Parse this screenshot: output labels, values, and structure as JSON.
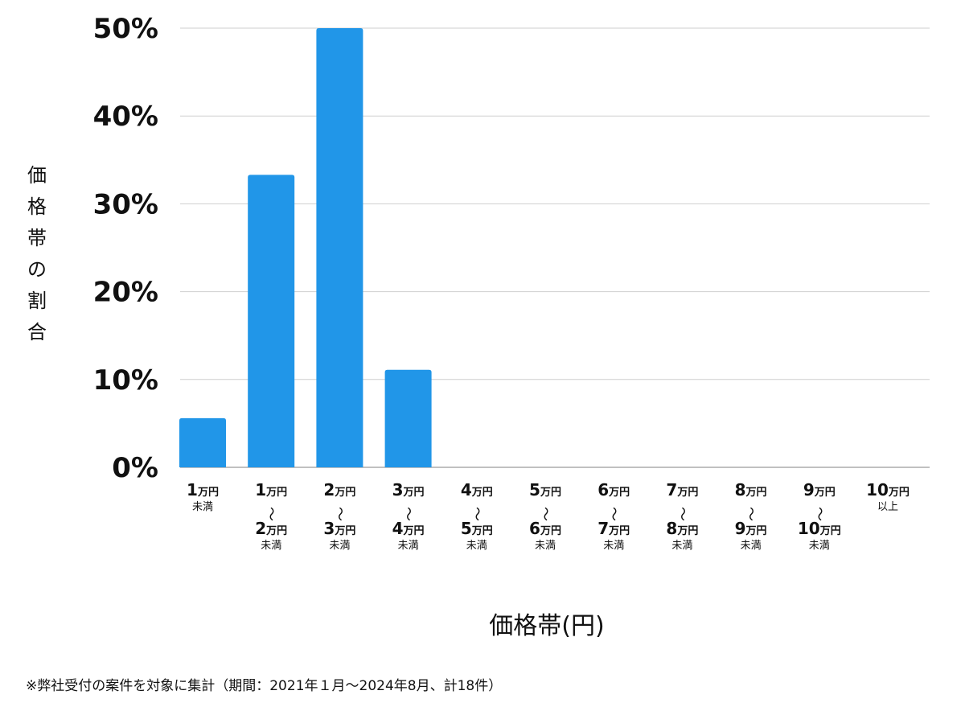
{
  "chart_data": {
    "type": "bar",
    "categories": [
      {
        "lines": [
          {
            "num": "1",
            "unit": "万円"
          },
          {
            "small": "未満"
          }
        ]
      },
      {
        "lines": [
          {
            "num": "1",
            "unit": "万円"
          },
          {
            "tilde": "〜"
          },
          {
            "num": "2",
            "unit": "万円"
          },
          {
            "small": "未満"
          }
        ]
      },
      {
        "lines": [
          {
            "num": "2",
            "unit": "万円"
          },
          {
            "tilde": "〜"
          },
          {
            "num": "3",
            "unit": "万円"
          },
          {
            "small": "未満"
          }
        ]
      },
      {
        "lines": [
          {
            "num": "3",
            "unit": "万円"
          },
          {
            "tilde": "〜"
          },
          {
            "num": "4",
            "unit": "万円"
          },
          {
            "small": "未満"
          }
        ]
      },
      {
        "lines": [
          {
            "num": "4",
            "unit": "万円"
          },
          {
            "tilde": "〜"
          },
          {
            "num": "5",
            "unit": "万円"
          },
          {
            "small": "未満"
          }
        ]
      },
      {
        "lines": [
          {
            "num": "5",
            "unit": "万円"
          },
          {
            "tilde": "〜"
          },
          {
            "num": "6",
            "unit": "万円"
          },
          {
            "small": "未満"
          }
        ]
      },
      {
        "lines": [
          {
            "num": "6",
            "unit": "万円"
          },
          {
            "tilde": "〜"
          },
          {
            "num": "7",
            "unit": "万円"
          },
          {
            "small": "未満"
          }
        ]
      },
      {
        "lines": [
          {
            "num": "7",
            "unit": "万円"
          },
          {
            "tilde": "〜"
          },
          {
            "num": "8",
            "unit": "万円"
          },
          {
            "small": "未満"
          }
        ]
      },
      {
        "lines": [
          {
            "num": "8",
            "unit": "万円"
          },
          {
            "tilde": "〜"
          },
          {
            "num": "9",
            "unit": "万円"
          },
          {
            "small": "未満"
          }
        ]
      },
      {
        "lines": [
          {
            "num": "9",
            "unit": "万円"
          },
          {
            "tilde": "〜"
          },
          {
            "num": "10",
            "unit": "万円"
          },
          {
            "small": "未満"
          }
        ]
      },
      {
        "lines": [
          {
            "num": "10",
            "unit": "万円"
          },
          {
            "small": "以上"
          }
        ]
      }
    ],
    "values": [
      5.6,
      33.3,
      50.0,
      11.1,
      0,
      0,
      0,
      0,
      0,
      0,
      0
    ],
    "ylim": [
      0,
      50
    ],
    "yticks": [
      "0%",
      "10%",
      "20%",
      "30%",
      "40%",
      "50%"
    ],
    "ytick_values": [
      0,
      10,
      20,
      30,
      40,
      50
    ],
    "ylabel": "価格帯の割合",
    "xlabel": "価格帯(円)",
    "grid": true,
    "bar_color": "#2196e8",
    "gridline_color": "#cfcfcf"
  },
  "footnote": "※弊社受付の案件を対象に集計（期間：2021年１月〜2024年8月、計18件）"
}
